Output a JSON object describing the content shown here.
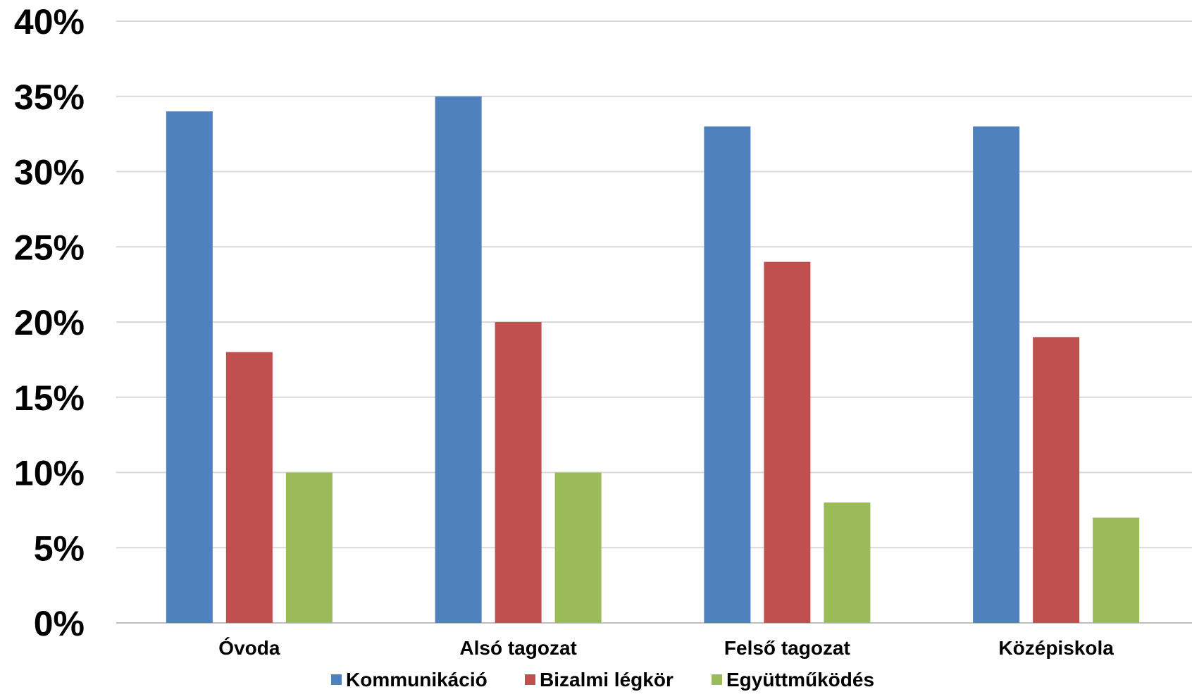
{
  "chart_data": {
    "type": "bar",
    "title": "",
    "xlabel": "",
    "ylabel": "",
    "categories": [
      "Óvoda",
      "Alsó tagozat",
      "Felső tagozat",
      "Középiskola"
    ],
    "series": [
      {
        "name": "Kommunikáció",
        "color": "#4F81BD",
        "values": [
          34,
          35,
          33,
          33
        ]
      },
      {
        "name": "Bizalmi légkör",
        "color": "#C0504D",
        "values": [
          18,
          20,
          24,
          19
        ]
      },
      {
        "name": "Együttműködés",
        "color": "#9BBB59",
        "values": [
          10,
          10,
          8,
          7
        ]
      }
    ],
    "y_ticks": [
      "0%",
      "5%",
      "10%",
      "15%",
      "20%",
      "25%",
      "30%",
      "35%",
      "40%"
    ],
    "ylim": [
      0,
      40
    ],
    "y_unit": "%",
    "grid": true,
    "gridline_color": "#D9D9D9",
    "legend_position": "bottom"
  }
}
